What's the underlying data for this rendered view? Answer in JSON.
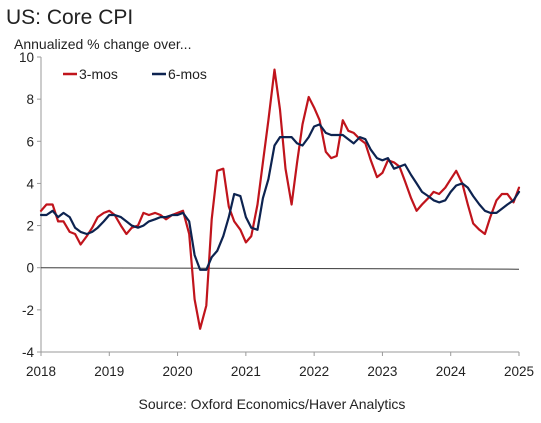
{
  "chart_data": {
    "type": "line",
    "title": "US: Core CPI",
    "subtitle": "Annualized % change over...",
    "source": "Source: Oxford Economics/Haver Analytics",
    "ylim": [
      -4,
      10
    ],
    "y_ticks": [
      "10",
      "8",
      "6",
      "4",
      "2",
      "0",
      "-2",
      "-4"
    ],
    "xlim": [
      2018,
      2025
    ],
    "x_ticks": [
      "2018",
      "2019",
      "2020",
      "2021",
      "2022",
      "2023",
      "2024",
      "2025"
    ],
    "grid": false,
    "legend_position": "top-left",
    "series": [
      {
        "name": "3-mos",
        "color": "#c0141c",
        "x": [
          2018.0,
          2018.08,
          2018.17,
          2018.25,
          2018.33,
          2018.42,
          2018.5,
          2018.58,
          2018.67,
          2018.75,
          2018.83,
          2018.92,
          2019.0,
          2019.08,
          2019.17,
          2019.25,
          2019.33,
          2019.42,
          2019.5,
          2019.58,
          2019.67,
          2019.75,
          2019.83,
          2019.92,
          2020.0,
          2020.08,
          2020.17,
          2020.25,
          2020.33,
          2020.42,
          2020.5,
          2020.58,
          2020.67,
          2020.75,
          2020.83,
          2020.92,
          2021.0,
          2021.08,
          2021.17,
          2021.25,
          2021.33,
          2021.42,
          2021.5,
          2021.58,
          2021.67,
          2021.75,
          2021.83,
          2021.92,
          2022.0,
          2022.08,
          2022.17,
          2022.25,
          2022.33,
          2022.42,
          2022.5,
          2022.58,
          2022.67,
          2022.75,
          2022.83,
          2022.92,
          2023.0,
          2023.08,
          2023.17,
          2023.25,
          2023.33,
          2023.42,
          2023.5,
          2023.58,
          2023.67,
          2023.75,
          2023.83,
          2023.92,
          2024.0,
          2024.08,
          2024.17,
          2024.25,
          2024.33,
          2024.42,
          2024.5,
          2024.58,
          2024.67,
          2024.75,
          2024.83,
          2024.92,
          2025.0
        ],
        "values": [
          2.7,
          3.0,
          3.0,
          2.2,
          2.2,
          1.7,
          1.6,
          1.1,
          1.5,
          1.9,
          2.4,
          2.6,
          2.7,
          2.5,
          2.0,
          1.6,
          1.9,
          2.0,
          2.6,
          2.5,
          2.6,
          2.5,
          2.3,
          2.5,
          2.6,
          2.7,
          1.6,
          -1.5,
          -2.9,
          -1.8,
          2.3,
          4.6,
          4.7,
          2.9,
          2.2,
          1.8,
          1.2,
          1.5,
          3.0,
          5.0,
          7.0,
          9.4,
          7.5,
          4.7,
          3.0,
          5.0,
          6.8,
          8.1,
          7.6,
          7.0,
          5.5,
          5.2,
          5.3,
          7.0,
          6.5,
          6.4,
          6.1,
          5.9,
          5.1,
          4.3,
          4.5,
          5.1,
          5.0,
          4.8,
          4.1,
          3.3,
          2.7,
          3.0,
          3.3,
          3.6,
          3.5,
          3.8,
          4.2,
          4.6,
          4.0,
          3.0,
          2.1,
          1.8,
          1.6,
          2.4,
          3.2,
          3.5,
          3.5,
          3.1,
          3.8
        ]
      },
      {
        "name": "6-mos",
        "color": "#0d2350",
        "x": [
          2018.0,
          2018.08,
          2018.17,
          2018.25,
          2018.33,
          2018.42,
          2018.5,
          2018.58,
          2018.67,
          2018.75,
          2018.83,
          2018.92,
          2019.0,
          2019.08,
          2019.17,
          2019.25,
          2019.33,
          2019.42,
          2019.5,
          2019.58,
          2019.67,
          2019.75,
          2019.83,
          2019.92,
          2020.0,
          2020.08,
          2020.17,
          2020.25,
          2020.33,
          2020.42,
          2020.5,
          2020.58,
          2020.67,
          2020.75,
          2020.83,
          2020.92,
          2021.0,
          2021.08,
          2021.17,
          2021.25,
          2021.33,
          2021.42,
          2021.5,
          2021.58,
          2021.67,
          2021.75,
          2021.83,
          2021.92,
          2022.0,
          2022.08,
          2022.17,
          2022.25,
          2022.33,
          2022.42,
          2022.5,
          2022.58,
          2022.67,
          2022.75,
          2022.83,
          2022.92,
          2023.0,
          2023.08,
          2023.17,
          2023.25,
          2023.33,
          2023.42,
          2023.5,
          2023.58,
          2023.67,
          2023.75,
          2023.83,
          2023.92,
          2024.0,
          2024.08,
          2024.17,
          2024.25,
          2024.33,
          2024.42,
          2024.5,
          2024.58,
          2024.67,
          2024.75,
          2024.83,
          2024.92,
          2025.0
        ],
        "values": [
          2.5,
          2.5,
          2.7,
          2.4,
          2.6,
          2.4,
          1.9,
          1.7,
          1.6,
          1.7,
          1.9,
          2.2,
          2.5,
          2.5,
          2.4,
          2.2,
          2.0,
          1.9,
          2.0,
          2.2,
          2.3,
          2.4,
          2.4,
          2.5,
          2.5,
          2.6,
          2.2,
          0.6,
          -0.1,
          -0.1,
          0.5,
          0.8,
          1.5,
          2.4,
          3.5,
          3.4,
          2.4,
          1.9,
          1.8,
          3.3,
          4.2,
          5.8,
          6.2,
          6.2,
          6.2,
          5.9,
          5.8,
          6.2,
          6.7,
          6.8,
          6.4,
          6.3,
          6.3,
          6.3,
          6.1,
          5.9,
          6.2,
          6.1,
          5.6,
          5.2,
          5.1,
          5.2,
          4.7,
          4.8,
          4.9,
          4.4,
          4.0,
          3.6,
          3.4,
          3.2,
          3.1,
          3.2,
          3.6,
          3.9,
          4.0,
          3.8,
          3.4,
          3.0,
          2.7,
          2.6,
          2.6,
          2.8,
          3.0,
          3.2,
          3.6
        ]
      }
    ]
  }
}
